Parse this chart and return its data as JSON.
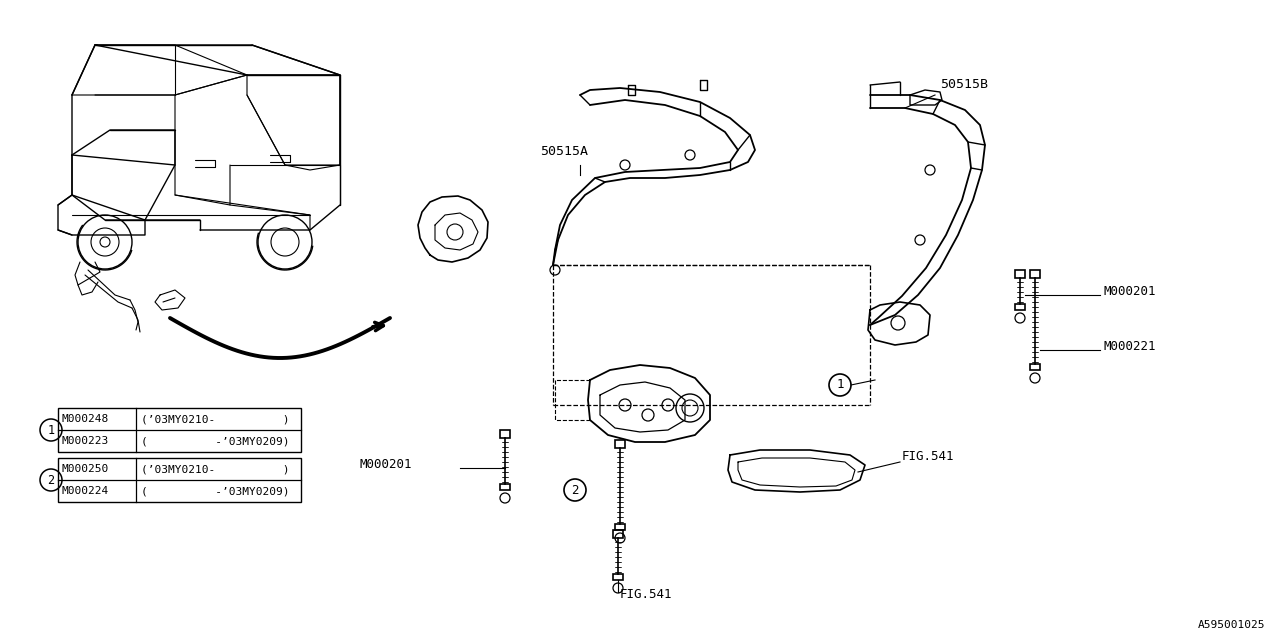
{
  "bg_color": "#ffffff",
  "fig_id": "A595001025",
  "text_color": "#000000",
  "line_color": "#000000",
  "table1": {
    "circle_num": "1",
    "rows": [
      {
        "part": "M000223",
        "desc": "(          -’03MY0209)"
      },
      {
        "part": "M000248",
        "desc": "(’03MY0210-          )"
      }
    ]
  },
  "table2": {
    "circle_num": "2",
    "rows": [
      {
        "part": "M000224",
        "desc": "(          -’03MY0209)"
      },
      {
        "part": "M000250",
        "desc": "(’03MY0210-          )"
      }
    ]
  }
}
